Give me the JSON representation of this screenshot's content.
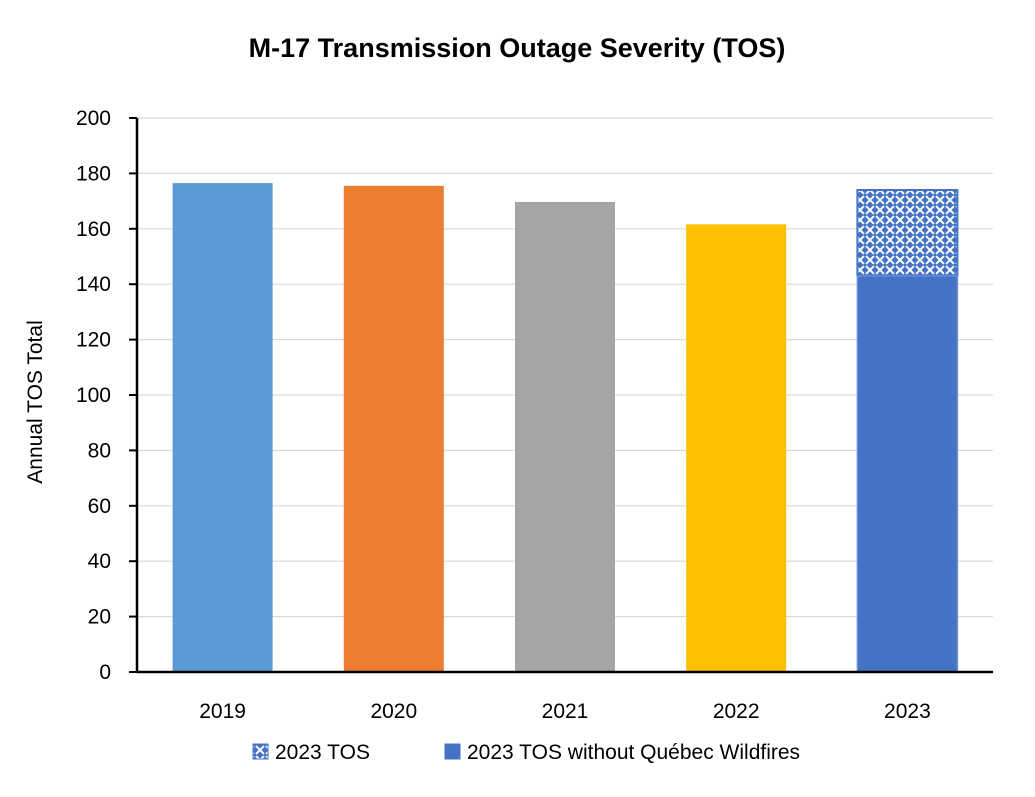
{
  "chart_data": {
    "type": "bar",
    "title": "M-17 Transmission Outage Severity (TOS)",
    "xlabel": "",
    "ylabel": "Annual TOS Total",
    "ylim": [
      0,
      200
    ],
    "yticks": [
      0,
      20,
      40,
      60,
      80,
      100,
      120,
      140,
      160,
      180,
      200
    ],
    "grid": true,
    "legend_position": "bottom",
    "categories": [
      "2019",
      "2020",
      "2021",
      "2022",
      "2023"
    ],
    "values": [
      176.5,
      175.5,
      169.7,
      161.6,
      174.0
    ],
    "bar_colors": [
      "#5B9BD5",
      "#ED7D31",
      "#A5A5A5",
      "#FFC000",
      "#4472C4"
    ],
    "series": [
      {
        "name": "2023 TOS",
        "category": "2023",
        "value": 174.0,
        "color": "#4472C4",
        "pattern": "crosshatch"
      },
      {
        "name": "2023 TOS without Québec Wildfires",
        "category": "2023",
        "value": 143.0,
        "color": "#4472C4",
        "pattern": "solid"
      }
    ]
  }
}
